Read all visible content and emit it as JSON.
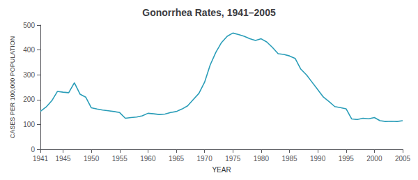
{
  "chart_data": {
    "type": "line",
    "title": "Gonorrhea Rates, 1941–2005",
    "xlabel": "YEAR",
    "ylabel": "CASES PER 100,000 POPULATION",
    "color": "#2a9db8",
    "xlim": [
      1941,
      2005
    ],
    "xticks": [
      1941,
      1945,
      1950,
      1955,
      1960,
      1965,
      1970,
      1975,
      1980,
      1985,
      1990,
      1995,
      2000,
      2005
    ],
    "ylim": [
      0,
      500
    ],
    "yticks": [
      0,
      100,
      200,
      300,
      400,
      500
    ],
    "grid": false,
    "x": [
      1941,
      1942,
      1943,
      1944,
      1945,
      1946,
      1947,
      1948,
      1949,
      1950,
      1951,
      1952,
      1953,
      1954,
      1955,
      1956,
      1957,
      1958,
      1959,
      1960,
      1961,
      1962,
      1963,
      1964,
      1965,
      1966,
      1967,
      1968,
      1969,
      1970,
      1971,
      1972,
      1973,
      1974,
      1975,
      1976,
      1977,
      1978,
      1979,
      1980,
      1981,
      1982,
      1983,
      1984,
      1985,
      1986,
      1987,
      1988,
      1989,
      1990,
      1991,
      1992,
      1993,
      1994,
      1995,
      1996,
      1997,
      1998,
      1999,
      2000,
      2001,
      2002,
      2003,
      2004,
      2005
    ],
    "values": [
      153,
      170,
      195,
      233,
      230,
      228,
      268,
      222,
      210,
      167,
      162,
      158,
      155,
      152,
      148,
      125,
      128,
      130,
      135,
      145,
      143,
      140,
      142,
      148,
      152,
      162,
      175,
      200,
      225,
      270,
      340,
      391,
      430,
      455,
      468,
      462,
      455,
      445,
      438,
      445,
      432,
      410,
      385,
      382,
      376,
      366,
      323,
      300,
      270,
      240,
      210,
      192,
      172,
      168,
      163,
      122,
      120,
      125,
      123,
      128,
      115,
      112,
      113,
      112,
      115
    ]
  }
}
